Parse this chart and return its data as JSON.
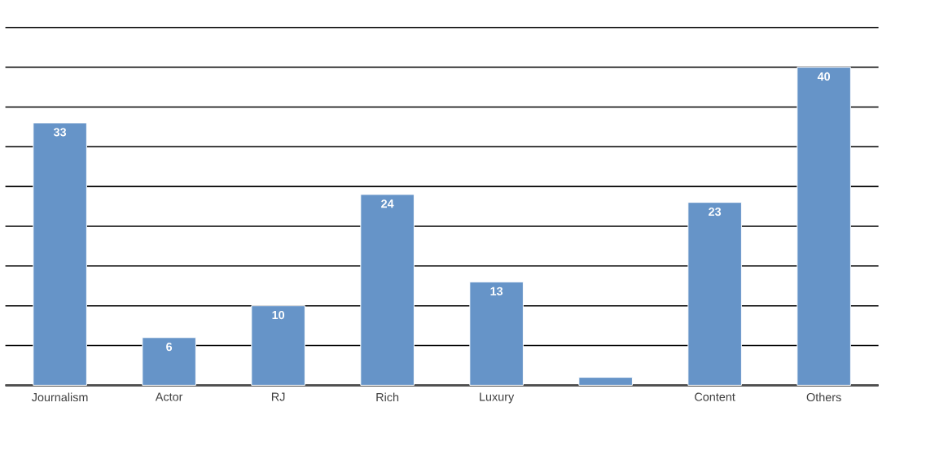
{
  "chart_data": {
    "type": "bar",
    "categories": [
      "Journalism",
      "Actor",
      "RJ",
      "Rich",
      "Luxury",
      null,
      "Content",
      "Others"
    ],
    "values": [
      33,
      6,
      10,
      24,
      13,
      1,
      23,
      40
    ],
    "value_labels": [
      "33",
      "6",
      "10",
      "24",
      "13",
      null,
      "23",
      "40"
    ],
    "color": "#6694c8",
    "ylim": [
      0,
      45
    ],
    "yticks": [
      0,
      5,
      10,
      15,
      20,
      25,
      30,
      35,
      40,
      45
    ],
    "tick_labels": "x",
    "grid": "y"
  }
}
